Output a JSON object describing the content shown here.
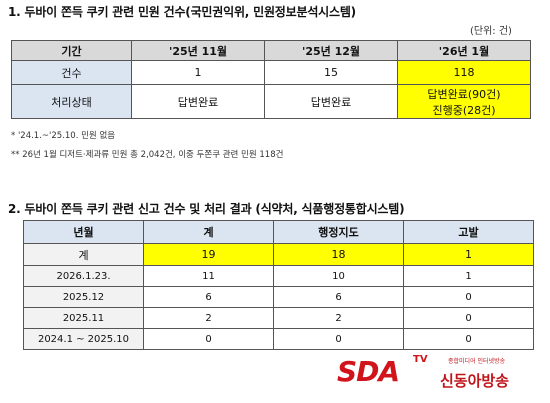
{
  "section1": {
    "title": "1. 두바이 쫀득 쿠키 관련 민원 건수(국민권익위, 민원정보분석시스템)",
    "unit": "(단위: 건)",
    "headers": [
      "기간",
      "'25년 11월",
      "'25년 12월",
      "'26년 1월"
    ],
    "rows": [
      {
        "label": "건수",
        "cells": [
          "1",
          "15",
          "118"
        ]
      },
      {
        "label": "처리상태",
        "cells": [
          "답변완료",
          "답변완료",
          "답변완료(90건)",
          "진행중(28건)"
        ]
      }
    ],
    "notes": [
      "* '24.1.~'25.10. 민원 없음",
      "** 26년 1월 디저트·제과류 민원 총 2,042건, 이중 두쫀쿠 관련 민원 118건"
    ]
  },
  "section2": {
    "title": "2. 두바이 쫀득 쿠키 관련 신고 건수 및 처리 결과 (식약처, 식품행정통합시스템)",
    "headers": [
      "년월",
      "계",
      "행정지도",
      "고발"
    ],
    "rows": [
      {
        "label": "계",
        "cells": [
          "19",
          "18",
          "1"
        ]
      },
      {
        "label": "2026.1.23.",
        "cells": [
          "11",
          "10",
          "1"
        ]
      },
      {
        "label": "2025.12",
        "cells": [
          "6",
          "6",
          "0"
        ]
      },
      {
        "label": "2025.11",
        "cells": [
          "2",
          "2",
          "0"
        ]
      },
      {
        "label": "2024.1 ~ 2025.10",
        "cells": [
          "0",
          "0",
          "0"
        ]
      }
    ]
  },
  "logo": {
    "mark": "SDA",
    "tv": "TV",
    "tagline": "종합미디어 인터넷방송",
    "name": "신동아방송",
    "color": "#d1141b"
  }
}
